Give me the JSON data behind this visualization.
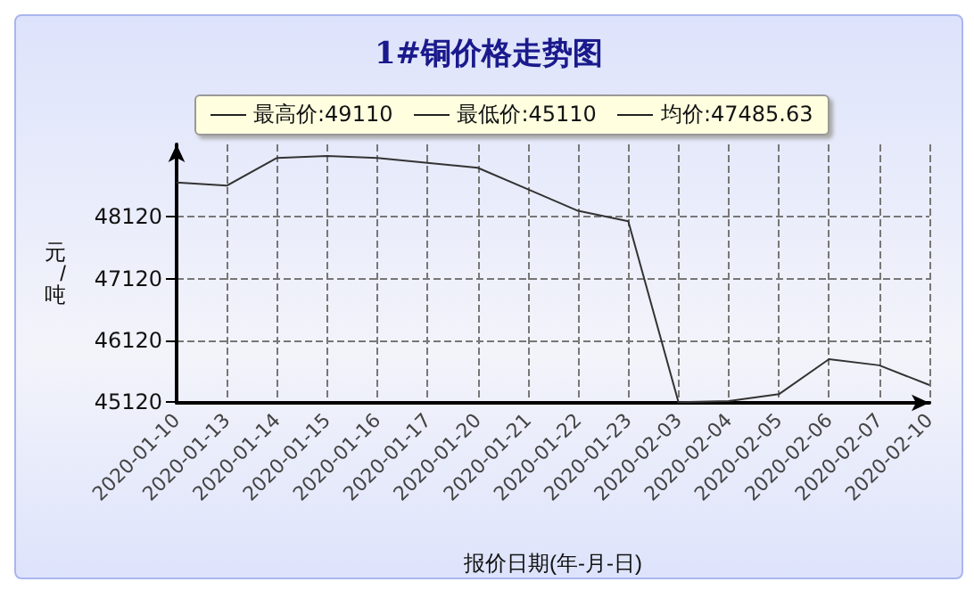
{
  "chart_data": {
    "type": "line",
    "title": "1#铜价格走势图",
    "xlabel": "报价日期(年-月-日)",
    "ylabel": "元/吨",
    "categories": [
      "2020-01-10",
      "2020-01-13",
      "2020-01-14",
      "2020-01-15",
      "2020-01-16",
      "2020-01-17",
      "2020-01-20",
      "2020-01-21",
      "2020-01-22",
      "2020-01-23",
      "2020-02-03",
      "2020-02-04",
      "2020-02-05",
      "2020-02-06",
      "2020-02-07",
      "2020-02-10"
    ],
    "series": [
      {
        "color": "#333333",
        "values": [
          48680,
          48630,
          49080,
          49110,
          49080,
          49000,
          48920,
          48570,
          48220,
          48050,
          45110,
          45130,
          45240,
          45810,
          45710,
          45390
        ]
      }
    ],
    "annotations": [
      "最高价:49110",
      "最低价:45110",
      "均价:47485.63"
    ],
    "ylim": [
      45100,
      49300
    ],
    "yticks": [
      45120,
      46120,
      47120,
      48120
    ],
    "grid": true,
    "marker": "none",
    "line_style": "solid"
  }
}
